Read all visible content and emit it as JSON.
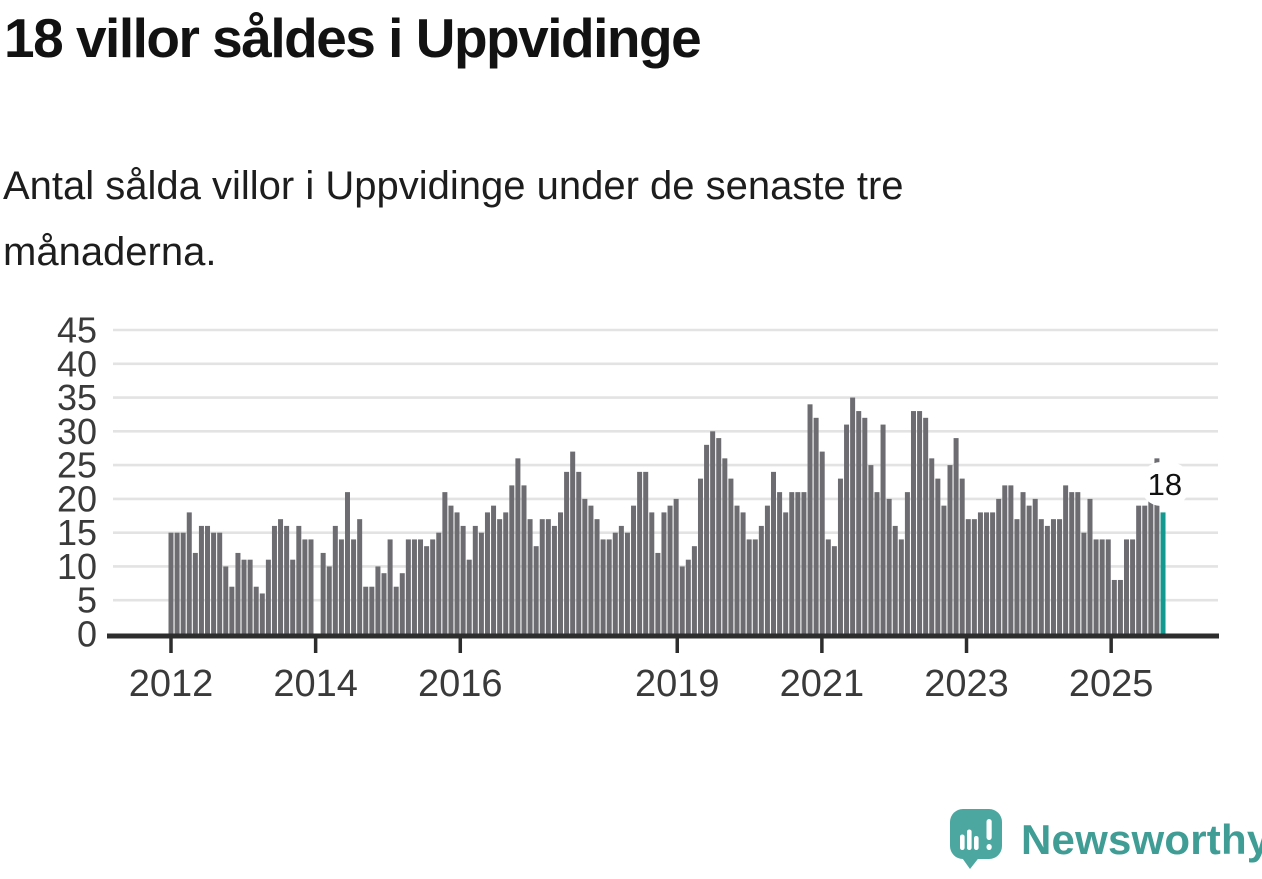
{
  "page": {
    "title": "18 villor såldes i Uppvidinge",
    "subtitle_lines": [
      "Antal sålda villor i Uppvidinge under de senaste tre",
      "månaderna."
    ]
  },
  "footer": {
    "brand": "Newsworthy",
    "logo_icon": "newsworthy-speech-bubble-bar-chart-icon"
  },
  "chart_data": {
    "type": "bar",
    "title": "18 villor såldes i Uppvidinge",
    "subtitle": "Antal sålda villor i Uppvidinge under de senaste tre månaderna.",
    "description": "Monthly bars from 2012 through 2025, last bar highlighted",
    "values": [
      15,
      15,
      15,
      18,
      12,
      16,
      16,
      15,
      15,
      10,
      7,
      12,
      11,
      11,
      7,
      6,
      11,
      16,
      17,
      16,
      11,
      16,
      14,
      14,
      0,
      12,
      10,
      16,
      14,
      21,
      14,
      17,
      7,
      7,
      10,
      9,
      14,
      7,
      9,
      14,
      14,
      14,
      13,
      14,
      15,
      21,
      19,
      18,
      16,
      11,
      16,
      15,
      18,
      19,
      17,
      18,
      22,
      26,
      22,
      17,
      13,
      17,
      17,
      16,
      18,
      24,
      27,
      24,
      20,
      19,
      17,
      14,
      14,
      15,
      16,
      15,
      19,
      24,
      24,
      18,
      12,
      18,
      19,
      20,
      10,
      11,
      13,
      23,
      28,
      30,
      29,
      26,
      23,
      19,
      18,
      14,
      14,
      16,
      19,
      24,
      21,
      18,
      21,
      21,
      21,
      34,
      32,
      27,
      14,
      13,
      23,
      31,
      35,
      33,
      32,
      25,
      21,
      31,
      20,
      16,
      14,
      21,
      33,
      33,
      32,
      26,
      23,
      19,
      25,
      29,
      23,
      17,
      17,
      18,
      18,
      18,
      20,
      22,
      22,
      17,
      21,
      19,
      20,
      17,
      16,
      17,
      17,
      22,
      21,
      21,
      15,
      20,
      14,
      14,
      14,
      8,
      8,
      14,
      14,
      19,
      19,
      20,
      26,
      18
    ],
    "highlight_last": true,
    "highlight_label": "18",
    "ylim": [
      0,
      45
    ],
    "y_ticks": [
      0,
      5,
      10,
      15,
      20,
      25,
      30,
      35,
      40,
      45
    ],
    "x_ticks": [
      {
        "label": "2012",
        "month_index": 0
      },
      {
        "label": "2014",
        "month_index": 24
      },
      {
        "label": "2016",
        "month_index": 48
      },
      {
        "label": "2019",
        "month_index": 84
      },
      {
        "label": "2021",
        "month_index": 108
      },
      {
        "label": "2023",
        "month_index": 132
      },
      {
        "label": "2025",
        "month_index": 156
      }
    ],
    "grid": true,
    "legend": "none",
    "colors": {
      "bar": "#6C6C71",
      "highlight": "#13998F",
      "axis": "#2D2D2D",
      "grid": "#E3E3E3",
      "tick_label": "#3A3A3A",
      "annotation_text": "#111111",
      "annotation_halo": "#FFFFFF",
      "brand_teal": "#3F9D96",
      "logo_bubble": "#4BA7A0"
    }
  }
}
